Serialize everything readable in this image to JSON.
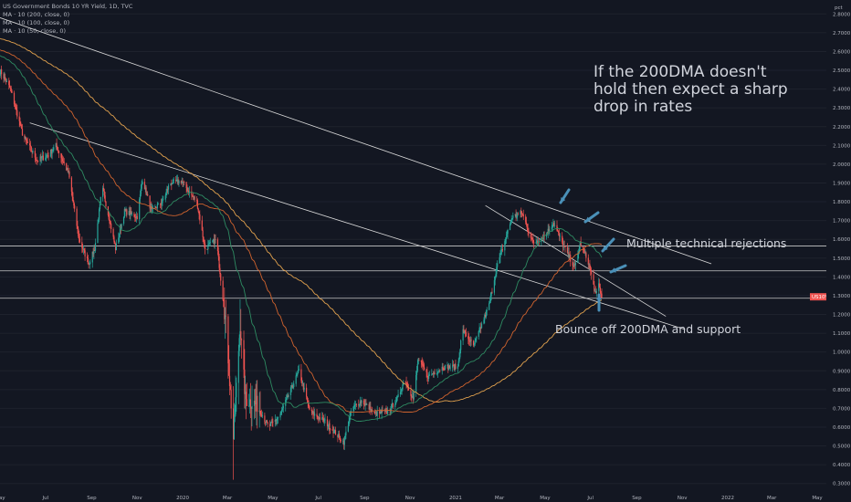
{
  "legend": {
    "title": "US Government Bonds 10 YR Yield, 1D, TVC",
    "ma200": "MA · 10 (200, close, 0)",
    "ma100": "MA · 10 (100, close, 0)",
    "ma50": "MA · 10 (50, close, 0)"
  },
  "annotations": {
    "line1": "If the 200DMA doesn't",
    "line2": "hold then expect a sharp",
    "line3": "drop in rates",
    "rejections": "Multiple technical rejections",
    "bounce": "Bounce off 200DMA and support"
  },
  "colors": {
    "background": "#131722",
    "up": "#26a69a",
    "down": "#ef5350",
    "ma200": "#e2a24e",
    "ma100": "#d0632e",
    "ma50": "#2e8b62",
    "trendline": "#d9d9d9",
    "arrow": "#4a90b8",
    "badge": "#ef5350"
  },
  "chart_data": {
    "type": "candlestick",
    "symbol": "US10Y",
    "y_unit": "pct",
    "ylim": [
      0.25,
      2.85
    ],
    "yticks": [
      "2.8000",
      "2.7000",
      "2.6000",
      "2.5000",
      "2.4000",
      "2.3000",
      "2.2000",
      "2.1000",
      "2.0000",
      "1.9000",
      "1.8000",
      "1.7000",
      "1.6000",
      "1.5000",
      "1.4000",
      "1.3000",
      "1.2000",
      "1.1000",
      "1.0000",
      "0.9000",
      "0.8000",
      "0.7000",
      "0.6000",
      "0.5000",
      "0.4000",
      "0.3000"
    ],
    "xticks": [
      "May",
      "Jul",
      "Sep",
      "Nov",
      "2020",
      "Mar",
      "May",
      "Jul",
      "Sep",
      "Nov",
      "2021",
      "Mar",
      "May",
      "Jul",
      "Sep",
      "Nov",
      "2022",
      "Mar",
      "May"
    ],
    "last_price": "1.2940",
    "levels": [
      "1.5650",
      "1.4320",
      "1.2864"
    ],
    "keypoints": [
      [
        "2019-05-01",
        2.5
      ],
      [
        "2019-05-15",
        2.4
      ],
      [
        "2019-06-01",
        2.15
      ],
      [
        "2019-06-20",
        2.02
      ],
      [
        "2019-07-05",
        2.05
      ],
      [
        "2019-07-15",
        2.1
      ],
      [
        "2019-08-01",
        1.95
      ],
      [
        "2019-08-15",
        1.6
      ],
      [
        "2019-08-28",
        1.47
      ],
      [
        "2019-09-05",
        1.55
      ],
      [
        "2019-09-15",
        1.88
      ],
      [
        "2019-09-25",
        1.7
      ],
      [
        "2019-10-03",
        1.55
      ],
      [
        "2019-10-15",
        1.75
      ],
      [
        "2019-11-01",
        1.72
      ],
      [
        "2019-11-08",
        1.92
      ],
      [
        "2019-11-20",
        1.75
      ],
      [
        "2019-12-05",
        1.8
      ],
      [
        "2019-12-15",
        1.9
      ],
      [
        "2019-12-31",
        1.91
      ],
      [
        "2020-01-10",
        1.85
      ],
      [
        "2020-01-20",
        1.8
      ],
      [
        "2020-01-31",
        1.55
      ],
      [
        "2020-02-15",
        1.6
      ],
      [
        "2020-02-28",
        1.15
      ],
      [
        "2020-03-09",
        0.54
      ],
      [
        "2020-03-18",
        1.15
      ],
      [
        "2020-03-25",
        0.75
      ],
      [
        "2020-04-10",
        0.72
      ],
      [
        "2020-04-25",
        0.6
      ],
      [
        "2020-05-10",
        0.66
      ],
      [
        "2020-06-05",
        0.9
      ],
      [
        "2020-06-20",
        0.68
      ],
      [
        "2020-07-10",
        0.63
      ],
      [
        "2020-08-04",
        0.52
      ],
      [
        "2020-08-15",
        0.7
      ],
      [
        "2020-08-28",
        0.74
      ],
      [
        "2020-09-15",
        0.67
      ],
      [
        "2020-10-01",
        0.68
      ],
      [
        "2020-10-15",
        0.75
      ],
      [
        "2020-10-25",
        0.86
      ],
      [
        "2020-11-05",
        0.75
      ],
      [
        "2020-11-12",
        0.96
      ],
      [
        "2020-11-25",
        0.87
      ],
      [
        "2020-12-15",
        0.92
      ],
      [
        "2021-01-04",
        0.92
      ],
      [
        "2021-01-10",
        1.12
      ],
      [
        "2021-01-25",
        1.03
      ],
      [
        "2021-02-15",
        1.25
      ],
      [
        "2021-02-25",
        1.45
      ],
      [
        "2021-03-05",
        1.55
      ],
      [
        "2021-03-18",
        1.72
      ],
      [
        "2021-03-31",
        1.74
      ],
      [
        "2021-04-15",
        1.58
      ],
      [
        "2021-05-01",
        1.62
      ],
      [
        "2021-05-12",
        1.69
      ],
      [
        "2021-05-25",
        1.57
      ],
      [
        "2021-06-10",
        1.45
      ],
      [
        "2021-06-17",
        1.58
      ],
      [
        "2021-06-28",
        1.48
      ],
      [
        "2021-07-08",
        1.3
      ],
      [
        "2021-07-12",
        1.36
      ],
      [
        "2021-07-16",
        1.29
      ]
    ]
  }
}
